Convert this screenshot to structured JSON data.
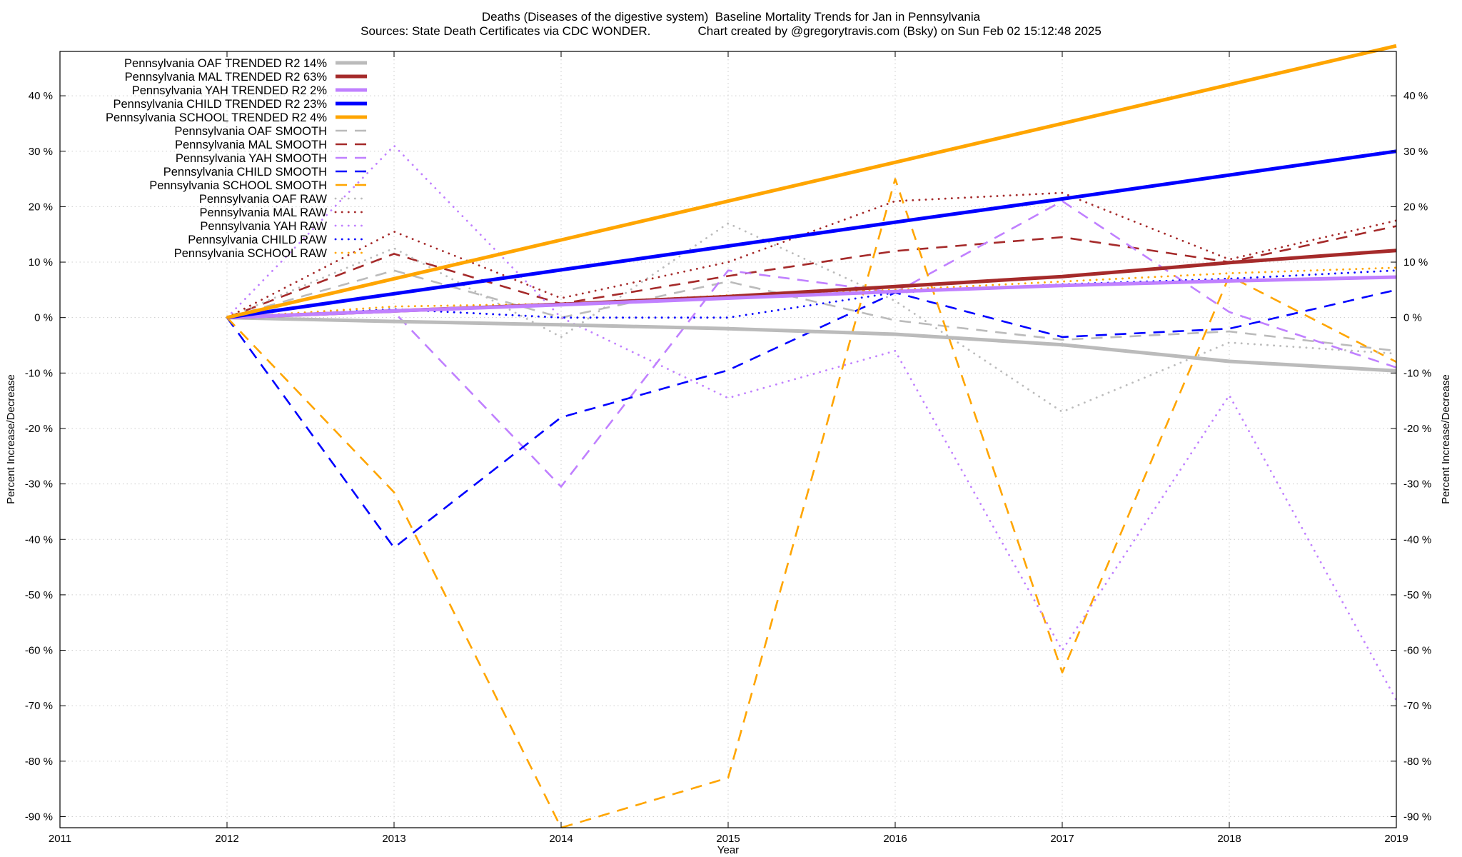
{
  "chart_data": {
    "type": "line",
    "title": "Deaths (Diseases of the digestive system)  Baseline Mortality Trends for Jan in Pennsylvania",
    "subtitle": "Sources: State Death Certificates via CDC WONDER.              Chart created by @gregorytravis.com (Bsky) on Sun Feb 02 15:12:48 2025",
    "xlabel": "Year",
    "ylabel": "Percent Increase/Decrease",
    "y2label": "Percent Increase/Decrease",
    "xlim": [
      2011,
      2019
    ],
    "ylim": [
      -92,
      48
    ],
    "x_ticks": [
      "2011",
      "2012",
      "2013",
      "2014",
      "2015",
      "2016",
      "2017",
      "2018",
      "2019"
    ],
    "y_ticks": [
      "-90 %",
      "-80 %",
      "-70 %",
      "-60 %",
      "-50 %",
      "-40 %",
      "-30 %",
      "-20 %",
      "-10 %",
      "0 %",
      "10 %",
      "20 %",
      "30 %",
      "40 %"
    ],
    "grid": true,
    "legend_position": "top-left",
    "x": [
      2012,
      2013,
      2014,
      2015,
      2016,
      2017,
      2018,
      2019
    ],
    "series": [
      {
        "name": "Pennsylvania OAF TRENDED R2  14%",
        "style": "solid",
        "color": "#bbbbbb",
        "values": [
          0,
          -0.7,
          -1.3,
          -2.0,
          -3.0,
          -4.9,
          -7.9,
          -9.6
        ]
      },
      {
        "name": "Pennsylvania MAL TRENDED R2  63%",
        "style": "solid",
        "color": "#a52a2a",
        "values": [
          0,
          1.2,
          2.4,
          3.8,
          5.6,
          7.4,
          9.9,
          12.1
        ]
      },
      {
        "name": "Pennsylvania YAH TRENDED R2   2%",
        "style": "solid",
        "color": "#c080ff",
        "values": [
          0,
          1.2,
          2.3,
          3.5,
          4.7,
          5.8,
          6.6,
          7.3
        ]
      },
      {
        "name": "Pennsylvania CHILD TRENDED R2  23%",
        "style": "solid",
        "color": "#0000ff",
        "values": [
          0,
          4.3,
          8.6,
          12.9,
          17.2,
          21.4,
          25.7,
          30.0
        ]
      },
      {
        "name": "Pennsylvania SCHOOL TRENDED R2   4%",
        "style": "solid",
        "color": "#ffa500",
        "values": [
          0,
          7.0,
          14.0,
          21.0,
          28.0,
          35.0,
          42.0,
          49.0
        ]
      },
      {
        "name": "Pennsylvania OAF SMOOTH",
        "style": "dashed",
        "color": "#bbbbbb",
        "values": [
          0,
          8.5,
          0,
          6.5,
          -0.5,
          -4,
          -2.5,
          -6
        ]
      },
      {
        "name": "Pennsylvania MAL SMOOTH",
        "style": "dashed",
        "color": "#a52a2a",
        "values": [
          0,
          11.5,
          2.5,
          7.5,
          12,
          14.5,
          10,
          16.5
        ]
      },
      {
        "name": "Pennsylvania YAH SMOOTH",
        "style": "dashed",
        "color": "#c080ff",
        "values": [
          0,
          1,
          -30.5,
          8.5,
          4.5,
          21,
          1,
          -9
        ]
      },
      {
        "name": "Pennsylvania CHILD SMOOTH",
        "style": "dashed",
        "color": "#0000ff",
        "values": [
          0,
          -41.5,
          -18,
          -9.5,
          4.5,
          -3.5,
          -2,
          5
        ]
      },
      {
        "name": "Pennsylvania SCHOOL SMOOTH",
        "style": "dashed",
        "color": "#ffa500",
        "values": [
          0,
          -31.5,
          -92,
          -83,
          25,
          -64,
          7.5,
          -8
        ]
      },
      {
        "name": "Pennsylvania OAF RAW",
        "style": "dotted",
        "color": "#bbbbbb",
        "values": [
          0,
          12.5,
          -3.5,
          17,
          3,
          -17,
          -4.5,
          -6.5
        ]
      },
      {
        "name": "Pennsylvania MAL RAW",
        "style": "dotted",
        "color": "#a52a2a",
        "values": [
          0,
          15.5,
          3.5,
          10,
          21,
          22.5,
          10.5,
          17.5
        ]
      },
      {
        "name": "Pennsylvania YAH RAW",
        "style": "dotted",
        "color": "#c080ff",
        "values": [
          0,
          31,
          0,
          -14.5,
          -6,
          -60,
          -14,
          -69
        ]
      },
      {
        "name": "Pennsylvania CHILD RAW",
        "style": "dotted",
        "color": "#0000ff",
        "values": [
          0,
          1.5,
          0,
          0,
          4.5,
          6,
          7,
          8.5
        ]
      },
      {
        "name": "Pennsylvania SCHOOL RAW",
        "style": "dotted",
        "color": "#ffa500",
        "values": [
          0,
          2,
          2.5,
          4,
          5,
          6.5,
          8,
          9
        ]
      }
    ]
  }
}
